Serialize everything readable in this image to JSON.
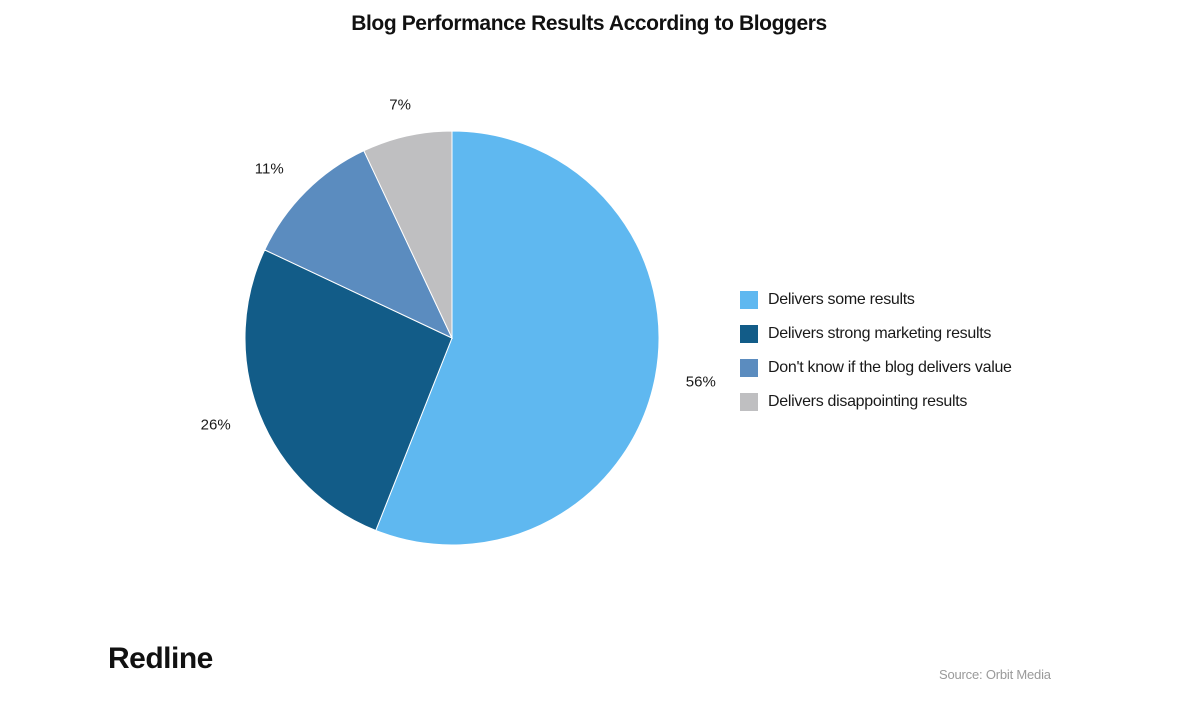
{
  "chart_data": {
    "type": "pie",
    "title": "Blog Performance Results According to Bloggers",
    "legend_position": "right",
    "slices": [
      {
        "label": "Delivers some results",
        "value": 56,
        "display": "56%",
        "color": "#5fb8f0"
      },
      {
        "label": "Delivers strong marketing results",
        "value": 26,
        "display": "26%",
        "color": "#125c88"
      },
      {
        "label": "Don't know if the blog delivers value",
        "value": 11,
        "display": "11%",
        "color": "#5b8cbf"
      },
      {
        "label": "Delivers disappointing results",
        "value": 7,
        "display": "7%",
        "color": "#bfbfc1"
      }
    ]
  },
  "footer": {
    "brand": "Redline",
    "source": "Source: Orbit Media"
  }
}
